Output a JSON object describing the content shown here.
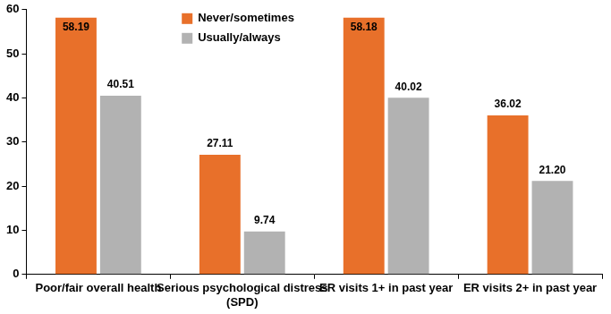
{
  "chart_data": {
    "type": "bar",
    "categories": [
      "Poor/fair overall health",
      "Serious psychological distress (SPD)",
      "ER visits 1+ in past year",
      "ER visits 2+ in past year"
    ],
    "series": [
      {
        "name": "Never/sometimes",
        "color": "#e8702a",
        "values": [
          58.19,
          27.11,
          58.18,
          36.02
        ],
        "value_labels": [
          "58.19",
          "27.11",
          "58.18",
          "36.02"
        ]
      },
      {
        "name": "Usually/always",
        "color": "#b2b2b2",
        "values": [
          40.51,
          9.74,
          40.02,
          21.2
        ],
        "value_labels": [
          "40.51",
          "9.74",
          "40.02",
          "21.20"
        ]
      }
    ],
    "ylim": [
      0,
      60
    ],
    "yticks": [
      0,
      10,
      20,
      30,
      40,
      50,
      60
    ],
    "grid": false,
    "legend": "top",
    "data_labels": true
  }
}
